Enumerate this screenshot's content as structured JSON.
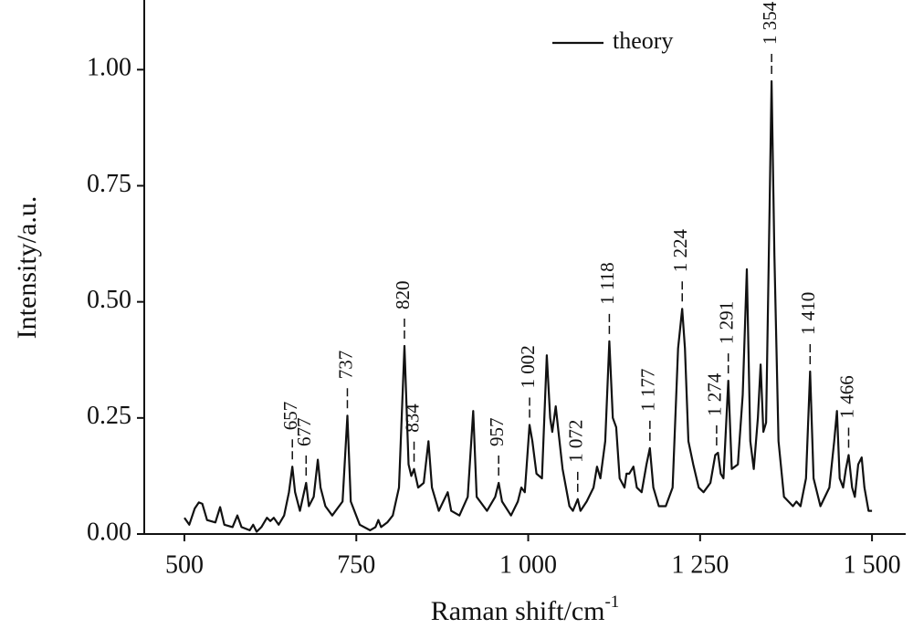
{
  "chart_data": {
    "type": "line",
    "xlabel": "Raman shift/cm",
    "xlabel_superscript": "-1",
    "ylabel": "Intensity/a.u.",
    "xlim": [
      441.6,
      1549
    ],
    "ylim": [
      0,
      1.15
    ],
    "xticks": [
      500,
      750,
      {
        "value": 1000,
        "label": "1 000"
      },
      {
        "value": 1250,
        "label": "1 250"
      },
      {
        "value": 1500,
        "label": "1 500"
      }
    ],
    "yticks": [
      {
        "value": 0,
        "label": "0.00"
      },
      0.25,
      {
        "value": 0.5,
        "label": "0.50"
      },
      0.75,
      {
        "value": 1,
        "label": "1.00"
      }
    ],
    "legend_loc": "upper center",
    "x": [
      500,
      507,
      515,
      521,
      526,
      533,
      545,
      552,
      558,
      570,
      577,
      583,
      595,
      600,
      605,
      612,
      620,
      625,
      630,
      637,
      645,
      652,
      657,
      661,
      668,
      677,
      681,
      688,
      694,
      698,
      705,
      715,
      730,
      737,
      742,
      755,
      770,
      778,
      782,
      786,
      795,
      803,
      812,
      820,
      826,
      830,
      834,
      840,
      848,
      855,
      860,
      870,
      883,
      888,
      900,
      912,
      920,
      925,
      940,
      952,
      957,
      962,
      975,
      985,
      990,
      995,
      1002,
      1006,
      1012,
      1020,
      1027,
      1032,
      1035,
      1040,
      1044,
      1050,
      1060,
      1065,
      1072,
      1076,
      1085,
      1095,
      1100,
      1105,
      1112,
      1118,
      1123,
      1128,
      1133,
      1140,
      1143,
      1147,
      1153,
      1158,
      1165,
      1172,
      1177,
      1182,
      1190,
      1200,
      1210,
      1218,
      1224,
      1228,
      1233,
      1240,
      1248,
      1255,
      1265,
      1272,
      1276,
      1280,
      1284,
      1291,
      1296,
      1305,
      1312,
      1318,
      1323,
      1328,
      1334,
      1338,
      1342,
      1346,
      1351,
      1354,
      1358,
      1364,
      1372,
      1385,
      1390,
      1396,
      1404,
      1410,
      1415,
      1425,
      1438,
      1445,
      1449,
      1453,
      1458,
      1462,
      1466,
      1471,
      1475,
      1480,
      1485,
      1489,
      1495,
      1500
    ],
    "series": [
      {
        "name": "theory",
        "color": "#111111",
        "values": [
          0.035,
          0.02,
          0.055,
          0.068,
          0.065,
          0.03,
          0.025,
          0.058,
          0.02,
          0.015,
          0.04,
          0.015,
          0.008,
          0.02,
          0.005,
          0.015,
          0.035,
          0.028,
          0.035,
          0.02,
          0.04,
          0.09,
          0.145,
          0.09,
          0.05,
          0.11,
          0.06,
          0.08,
          0.16,
          0.1,
          0.06,
          0.04,
          0.07,
          0.255,
          0.07,
          0.02,
          0.008,
          0.015,
          0.03,
          0.015,
          0.025,
          0.04,
          0.1,
          0.405,
          0.15,
          0.125,
          0.14,
          0.1,
          0.11,
          0.2,
          0.1,
          0.05,
          0.09,
          0.05,
          0.04,
          0.08,
          0.265,
          0.08,
          0.05,
          0.08,
          0.11,
          0.07,
          0.04,
          0.07,
          0.1,
          0.09,
          0.235,
          0.2,
          0.13,
          0.12,
          0.385,
          0.25,
          0.22,
          0.275,
          0.22,
          0.14,
          0.06,
          0.05,
          0.075,
          0.05,
          0.07,
          0.1,
          0.145,
          0.12,
          0.2,
          0.415,
          0.25,
          0.23,
          0.12,
          0.1,
          0.13,
          0.13,
          0.145,
          0.1,
          0.09,
          0.15,
          0.185,
          0.1,
          0.06,
          0.06,
          0.1,
          0.4,
          0.485,
          0.4,
          0.2,
          0.15,
          0.1,
          0.09,
          0.11,
          0.17,
          0.175,
          0.13,
          0.12,
          0.33,
          0.14,
          0.15,
          0.3,
          0.57,
          0.2,
          0.14,
          0.25,
          0.365,
          0.22,
          0.24,
          0.7,
          0.975,
          0.6,
          0.2,
          0.08,
          0.06,
          0.07,
          0.06,
          0.12,
          0.35,
          0.12,
          0.06,
          0.1,
          0.2,
          0.265,
          0.12,
          0.1,
          0.14,
          0.17,
          0.1,
          0.08,
          0.15,
          0.165,
          0.1,
          0.05,
          0.05
        ]
      }
    ],
    "annotations": [
      {
        "label": "657",
        "x": 657,
        "y": 0.145
      },
      {
        "label": "677",
        "x": 677,
        "y": 0.11
      },
      {
        "label": "737",
        "x": 737,
        "y": 0.255
      },
      {
        "label": "820",
        "x": 820,
        "y": 0.405
      },
      {
        "label": "834",
        "x": 834,
        "y": 0.14
      },
      {
        "label": "957",
        "x": 957,
        "y": 0.11
      },
      {
        "label": "1 002",
        "x": 1002,
        "y": 0.235
      },
      {
        "label": "1 072",
        "x": 1072,
        "y": 0.075
      },
      {
        "label": "1 118",
        "x": 1118,
        "y": 0.415
      },
      {
        "label": "1 177",
        "x": 1177,
        "y": 0.185
      },
      {
        "label": "1 224",
        "x": 1224,
        "y": 0.485
      },
      {
        "label": "1 274",
        "x": 1274,
        "y": 0.175
      },
      {
        "label": "1 291",
        "x": 1291,
        "y": 0.33
      },
      {
        "label": "1 354",
        "x": 1354,
        "y": 0.975
      },
      {
        "label": "1 410",
        "x": 1410,
        "y": 0.35
      },
      {
        "label": "1 466",
        "x": 1466,
        "y": 0.17
      }
    ]
  }
}
